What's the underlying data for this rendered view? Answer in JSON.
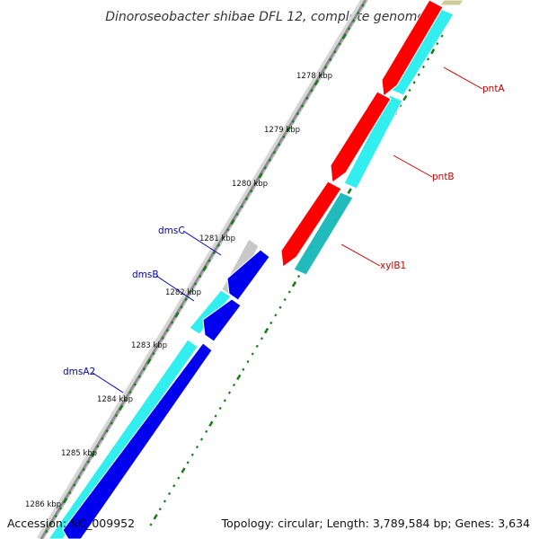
{
  "title": "Dinoroseobacter shibae DFL 12, complete genome",
  "accession": "Accession: NC_009952",
  "summary": "Topology: circular; Length: 3,789,584 bp; Genes: 3,634",
  "colors": {
    "backbone": "#8a8a8a",
    "tick": "#1e7a1e",
    "forward_cds": "#ff0000",
    "forward_orf": "#33eeee",
    "reverse_cds": "#0000ee",
    "reverse_orf": "#33eeee",
    "unknown": "#c8c8c8",
    "forward_label": "#cc0000",
    "reverse_label": "#0000bb"
  },
  "scale": {
    "kbp_labels": [
      "1278 kbp",
      "1279 kbp",
      "1280 kbp",
      "1281 kbp",
      "1282 kbp",
      "1283 kbp",
      "1284 kbp",
      "1285 kbp",
      "1286 kbp"
    ]
  },
  "forward_genes": [
    {
      "name": "pntA",
      "strand": "+"
    },
    {
      "name": "pntB",
      "strand": "+"
    },
    {
      "name": "xylB1",
      "strand": "+"
    }
  ],
  "reverse_genes": [
    {
      "name": "dmsC",
      "strand": "-"
    },
    {
      "name": "dmsB",
      "strand": "-"
    },
    {
      "name": "dmsA2",
      "strand": "-"
    }
  ]
}
